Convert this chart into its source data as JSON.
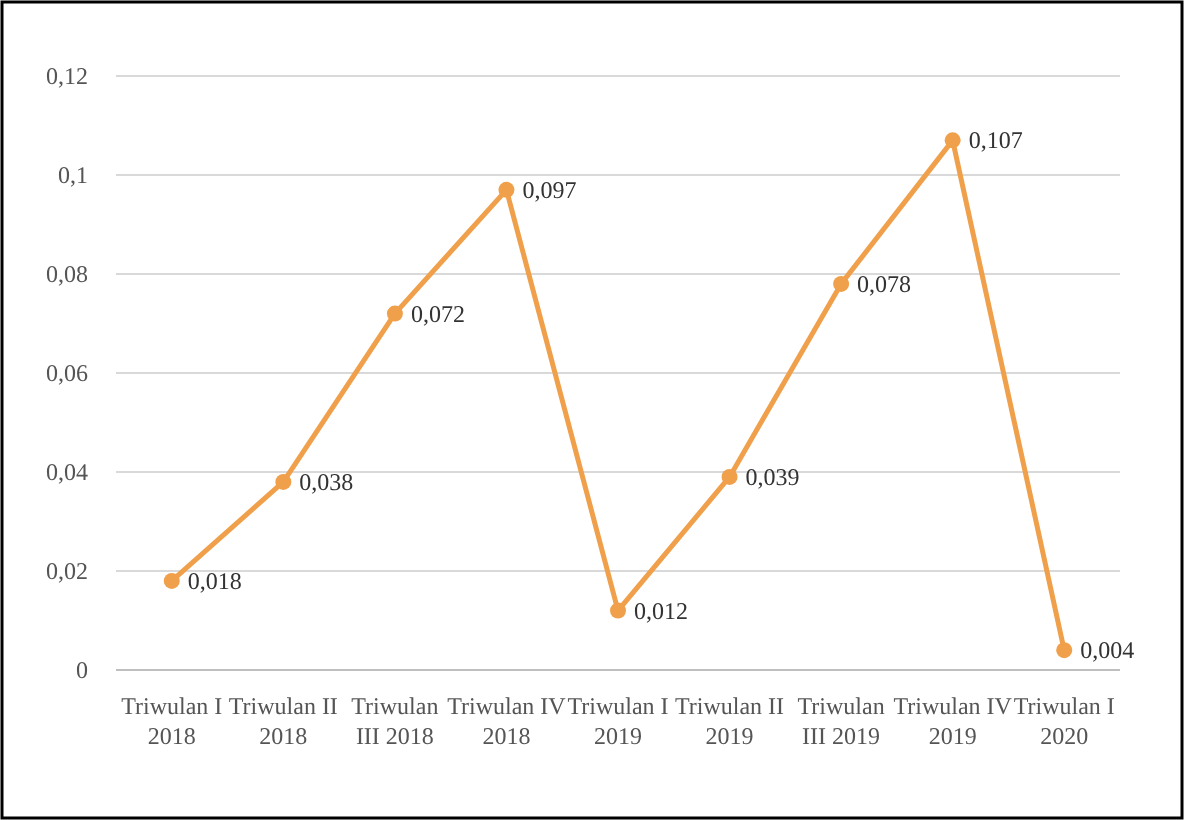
{
  "chart_data": {
    "type": "line",
    "categories": [
      "Triwulan I 2018",
      "Triwulan II 2018",
      "Triwulan III 2018",
      "Triwulan IV 2018",
      "Triwulan I 2019",
      "Triwulan II 2019",
      "Triwulan III 2019",
      "Triwulan IV 2019",
      "Triwulan I 2020"
    ],
    "series": [
      {
        "color": "#f0a04b",
        "values": [
          0.018,
          0.038,
          0.072,
          0.097,
          0.012,
          0.039,
          0.078,
          0.107,
          0.004
        ],
        "value_labels": [
          "0,018",
          "0,038",
          "0,072",
          "0,097",
          "0,012",
          "0,039",
          "0,078",
          "0,107",
          "0,004"
        ]
      }
    ],
    "ylim": [
      0,
      0.12
    ],
    "yticks": [
      0,
      {
        "value": 0.02,
        "label": "0,02"
      },
      {
        "value": 0.04,
        "label": "0,04"
      },
      {
        "value": 0.06,
        "label": "0,06"
      },
      {
        "value": 0.08,
        "label": "0,08"
      },
      {
        "value": 0.1,
        "label": "0,1"
      },
      {
        "value": 0.12,
        "label": "0,12"
      }
    ],
    "grid": "y",
    "marker": "circle",
    "line_style": "solid"
  }
}
